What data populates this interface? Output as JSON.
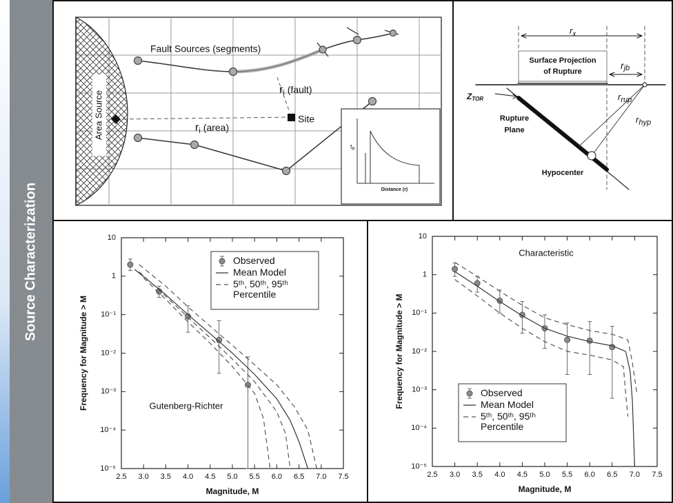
{
  "sidebar": {
    "title": "Source Characterization"
  },
  "fault_diagram": {
    "fault_label": "Fault Sources (segments)",
    "area_label": "Area Source",
    "site_label": "Site",
    "fault_distance": {
      "symbol": "r",
      "subscript": "i",
      "text": "(fault)"
    },
    "area_distance": {
      "symbol": "r",
      "subscript": "i",
      "text": "(area)"
    },
    "inset": {
      "y_symbol": "f",
      "y_subscript": "R",
      "x_label": "Distance (r)"
    }
  },
  "rupture_diagram": {
    "rx": {
      "symbol": "r",
      "subscript": "x"
    },
    "projection_label": [
      "Surface Projection",
      "of Rupture"
    ],
    "rjb": {
      "symbol": "r",
      "subscript": "jb"
    },
    "ztor": {
      "symbol": "Z",
      "subscript": "TOR"
    },
    "rrup": {
      "symbol": "r",
      "subscript": "rup"
    },
    "rhyp": {
      "symbol": "r",
      "subscript": "hyp"
    },
    "plane_label": [
      "Rupture",
      "Plane"
    ],
    "hypocenter_label": "Hypocenter"
  },
  "chart_data": [
    {
      "type": "line",
      "annotation": "Gutenberg-Richter",
      "x_label": "Magnitude, M",
      "y_label": "Frequency for Magnitude > M",
      "log_y": true,
      "legend": "upper right",
      "xlim": [
        2.5,
        7.5
      ],
      "xticks": [
        2.5,
        {
          "value": 3,
          "label": "3.0"
        },
        3.5,
        {
          "value": 4,
          "label": "4.0"
        },
        4.5,
        {
          "value": 5,
          "label": "5.0"
        },
        5.5,
        {
          "value": 6,
          "label": "6.0"
        },
        6.5,
        {
          "value": 7,
          "label": "7.0"
        },
        7.5
      ],
      "ylim": [
        1e-05,
        10
      ],
      "yticks": [
        10,
        1,
        {
          "value": 0.1,
          "label": "10⁻¹"
        },
        {
          "value": 0.01,
          "label": "10⁻²"
        },
        {
          "value": 0.001,
          "label": "10⁻³"
        },
        {
          "value": 0.0001,
          "label": "10⁻⁴"
        },
        {
          "value": 1e-05,
          "label": "10⁻⁵"
        }
      ],
      "series": [
        {
          "name": "Observed",
          "style": "points",
          "color": "#8a8a8a",
          "x": [
            2.7,
            3.35,
            4.0,
            4.7,
            5.35
          ],
          "values": [
            2,
            0.4,
            0.09,
            0.022,
            0.0015
          ],
          "lower": [
            1.4,
            0.28,
            0.035,
            0.003,
            1e-05
          ],
          "upper": [
            2.8,
            0.55,
            0.17,
            0.07,
            0.008
          ]
        },
        {
          "name": "Mean Model",
          "style": "solid",
          "color": "#333333",
          "curves": [
            {
              "x": [
                2.8,
                3.5,
                4.0,
                4.5,
                5.0,
                5.5,
                6.0,
                6.3,
                6.5,
                6.7
              ],
              "values": [
                1.5,
                0.33,
                0.1,
                0.032,
                0.01,
                0.0028,
                0.00065,
                0.00018,
                5e-05,
                1e-05
              ]
            }
          ]
        },
        {
          "name": "5ᵗʰ, 50ᵗʰ, 95ᵗʰ Percentile",
          "style": "dashed",
          "color": "#555555",
          "curves": [
            {
              "x": [
                3.0,
                3.5,
                4.0,
                4.5,
                5.0,
                5.5,
                5.7,
                5.85
              ],
              "values": [
                0.9,
                0.25,
                0.065,
                0.018,
                0.0045,
                0.0009,
                0.0002,
                1e-05
              ]
            },
            {
              "x": [
                2.9,
                3.5,
                4.0,
                4.5,
                5.0,
                5.5,
                6.0,
                6.2,
                6.3
              ],
              "values": [
                1.3,
                0.3,
                0.085,
                0.025,
                0.007,
                0.0018,
                0.0003,
                8e-05,
                1e-05
              ]
            },
            {
              "x": [
                2.9,
                3.5,
                4.0,
                4.5,
                5.0,
                5.5,
                6.0,
                6.4,
                6.7,
                6.9
              ],
              "values": [
                2,
                0.55,
                0.16,
                0.05,
                0.016,
                0.005,
                0.0015,
                0.0004,
                0.0001,
                1e-05
              ]
            }
          ]
        }
      ]
    },
    {
      "type": "line",
      "title": "Characteristic",
      "x_label": "Magnitude, M",
      "y_label": "Frequency for Magnitude > M",
      "log_y": true,
      "legend": "lower left",
      "xlim": [
        2.5,
        7.5
      ],
      "xticks": [
        2.5,
        {
          "value": 3,
          "label": "3.0"
        },
        3.5,
        {
          "value": 4,
          "label": "4.0"
        },
        4.5,
        {
          "value": 5,
          "label": "5.0"
        },
        5.5,
        {
          "value": 6,
          "label": "6.0"
        },
        6.5,
        {
          "value": 7,
          "label": "7.0"
        },
        7.5
      ],
      "ylim": [
        1e-05,
        10
      ],
      "yticks": [
        10,
        1,
        {
          "value": 0.1,
          "label": "10⁻¹"
        },
        {
          "value": 0.01,
          "label": "10⁻²"
        },
        {
          "value": 0.001,
          "label": "10⁻³"
        },
        {
          "value": 0.0001,
          "label": "10⁻⁴"
        },
        {
          "value": 1e-05,
          "label": "10⁻⁵"
        }
      ],
      "series": [
        {
          "name": "Observed",
          "style": "points",
          "color": "#8a8a8a",
          "x": [
            3.0,
            3.5,
            4.0,
            4.5,
            5.0,
            5.5,
            6.0,
            6.5
          ],
          "values": [
            1.4,
            0.6,
            0.21,
            0.09,
            0.04,
            0.02,
            0.019,
            0.013
          ],
          "lower": [
            0.9,
            0.35,
            0.1,
            0.03,
            0.012,
            0.0025,
            0.0025,
            0.0006
          ],
          "upper": [
            2.0,
            0.9,
            0.4,
            0.2,
            0.09,
            0.055,
            0.06,
            0.045
          ]
        },
        {
          "name": "Mean Model",
          "style": "solid",
          "color": "#333333",
          "curves": [
            {
              "x": [
                3.0,
                3.5,
                4.0,
                4.5,
                5.0,
                5.5,
                6.0,
                6.5,
                6.8,
                6.9,
                6.95,
                7.0
              ],
              "values": [
                1.2,
                0.5,
                0.2,
                0.085,
                0.04,
                0.025,
                0.018,
                0.014,
                0.01,
                0.003,
                0.0005,
                1e-05
              ]
            }
          ]
        },
        {
          "name": "5ᵗʰ, 50ᵗʰ, 95ᵗʰ Percentile",
          "style": "dashed",
          "color": "#555555",
          "curves": [
            {
              "x": [
                3.0,
                3.5,
                4.0,
                4.5,
                5.0,
                5.5,
                6.0,
                6.5,
                6.85,
                6.95,
                7.05
              ],
              "values": [
                2.1,
                0.9,
                0.37,
                0.16,
                0.075,
                0.05,
                0.035,
                0.028,
                0.02,
                0.005,
                0.0008
              ]
            },
            {
              "x": [
                3.0,
                3.5,
                4.0,
                4.5,
                5.0,
                5.5,
                6.0,
                6.5,
                6.75,
                6.8,
                6.85
              ],
              "values": [
                0.75,
                0.28,
                0.1,
                0.04,
                0.018,
                0.01,
                0.008,
                0.006,
                0.004,
                0.0008,
                0.0002
              ]
            }
          ]
        }
      ]
    }
  ]
}
